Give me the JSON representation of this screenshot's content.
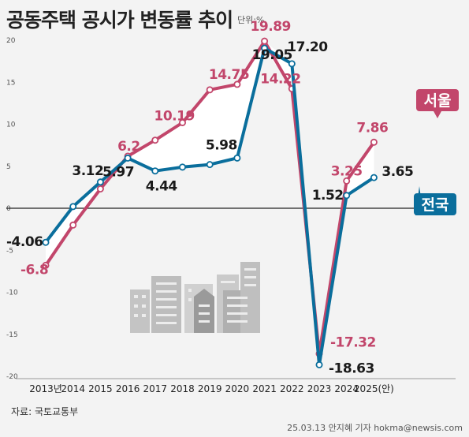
{
  "header": {
    "title": "공동주택 공시가 변동률 추이",
    "unit": "단위:%"
  },
  "footer": {
    "source": "자료: 국토교통부",
    "credit": "25.03.13 안지혜 기자 hokma@newsis.com"
  },
  "colors": {
    "seoul": "#c2466b",
    "national": "#0a6e9c",
    "background": "#f3f3f3",
    "area": "#ffffff",
    "zero_line": "#222222"
  },
  "chart_data": {
    "type": "line",
    "title": "공동주택 공시가 변동률 추이",
    "ylabel": "단위:%",
    "xlabel": "",
    "ylim": [
      -20,
      20
    ],
    "yticks": [
      "20",
      "15",
      "10",
      "5",
      "0",
      "-5",
      "-10",
      "-15",
      "-20"
    ],
    "ytick_values": [
      20,
      15,
      10,
      5,
      0,
      -5,
      -10,
      -15,
      -20
    ],
    "categories": [
      "2013년",
      "2014",
      "2015",
      "2016",
      "2017",
      "2018",
      "2019",
      "2020",
      "2021",
      "2022",
      "2023",
      "2024",
      "2025(안)"
    ],
    "grid": false,
    "series": [
      {
        "name": "서울",
        "color": "#c2466b",
        "values": [
          -6.8,
          -2.0,
          2.3,
          6.2,
          8.1,
          10.19,
          14.1,
          14.75,
          19.89,
          14.22,
          -17.32,
          3.25,
          7.86
        ],
        "labels": [
          "-6.8",
          null,
          null,
          "6.2",
          null,
          "10.19",
          null,
          "14.75",
          "19.89",
          "14.22",
          "-17.32",
          "3.25",
          "7.86"
        ]
      },
      {
        "name": "전국",
        "color": "#0a6e9c",
        "values": [
          -4.06,
          0.2,
          3.12,
          5.97,
          4.44,
          4.9,
          5.2,
          5.98,
          19.05,
          17.2,
          -18.63,
          1.52,
          3.65
        ],
        "labels": [
          "-4.06",
          null,
          "3.12",
          "5.97",
          "4.44",
          null,
          null,
          "5.98",
          "19.05",
          "17.20",
          "-18.63",
          "1.52",
          "3.65"
        ]
      }
    ]
  }
}
